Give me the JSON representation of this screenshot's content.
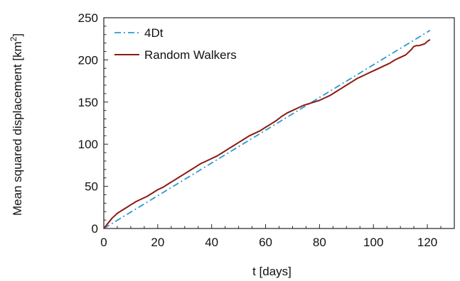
{
  "chart_data": {
    "type": "line",
    "xlabel": "t [days]",
    "ylabel_main": "Mean squared displacement [km",
    "ylabel_sup": "2",
    "ylabel_close": "]",
    "xlim": [
      0,
      130
    ],
    "ylim": [
      0,
      250
    ],
    "x_ticks": [
      0,
      20,
      40,
      60,
      80,
      100,
      120
    ],
    "y_ticks": [
      0,
      50,
      100,
      150,
      200,
      250
    ],
    "grid": false,
    "legend_position": "top-left",
    "series": [
      {
        "name": "4Dt",
        "style": "dash-dot",
        "color": "#2b9bd1",
        "x": [
          0,
          121
        ],
        "y": [
          0,
          235
        ]
      },
      {
        "name": "Random Walkers",
        "style": "solid",
        "color": "#8b1a10",
        "x": [
          0,
          1,
          2,
          3,
          4,
          5,
          6,
          7,
          8,
          10,
          12,
          14,
          16,
          18,
          20,
          22,
          24,
          26,
          28,
          30,
          32,
          34,
          36,
          38,
          40,
          42,
          44,
          46,
          48,
          50,
          52,
          54,
          56,
          58,
          60,
          62,
          64,
          66,
          68,
          70,
          72,
          74,
          76,
          78,
          80,
          82,
          84,
          86,
          88,
          90,
          92,
          94,
          96,
          98,
          100,
          102,
          104,
          106,
          108,
          110,
          112,
          113,
          114,
          115,
          116,
          117,
          118,
          119,
          120,
          121
        ],
        "y": [
          0,
          4,
          8,
          12,
          15,
          18,
          20,
          22,
          24,
          28,
          32,
          35,
          38,
          42,
          46,
          49,
          53,
          57,
          61,
          65,
          69,
          73,
          77,
          80,
          83,
          86,
          90,
          94,
          98,
          102,
          106,
          110,
          113,
          116,
          120,
          124,
          128,
          133,
          137,
          140,
          143,
          146,
          148,
          150,
          152,
          155,
          158,
          162,
          166,
          170,
          174,
          178,
          181,
          184,
          187,
          190,
          193,
          196,
          200,
          203,
          206,
          209,
          212,
          216,
          217,
          217,
          218,
          219,
          222,
          224
        ]
      }
    ]
  }
}
